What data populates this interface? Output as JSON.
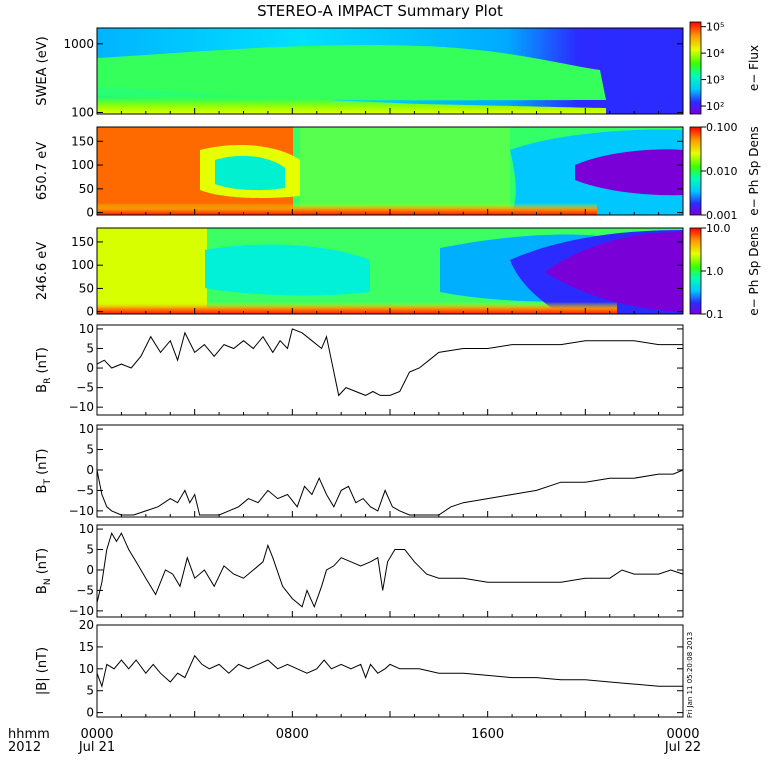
{
  "title": "STEREO-A IMPACT Summary Plot",
  "footer": {
    "left_top": "hhmm",
    "left_bottom": "2012"
  },
  "side_stamp": "Fri Jan 11 05:20:08 2013",
  "chart_data": [
    {
      "type": "heatmap",
      "id": "swea",
      "ylabel": "SWEA (eV)",
      "yscale": "log",
      "ylim": [
        95,
        1700
      ],
      "yticks": [
        {
          "v": 100,
          "label": "100"
        },
        {
          "v": 1000,
          "label": "1000"
        }
      ],
      "colorbar": {
        "label": "e− Flux",
        "scale": "log",
        "range": [
          50,
          150000
        ],
        "ticks": [
          {
            "v": 100,
            "label": "10²"
          },
          {
            "v": 1000,
            "label": "10³"
          },
          {
            "v": 10000,
            "label": "10⁴"
          },
          {
            "v": 100000,
            "label": "10⁵"
          }
        ]
      },
      "dimensions": {
        "time_hours": [
          0,
          24
        ],
        "energy_eV": [
          95,
          1700
        ]
      }
    },
    {
      "type": "heatmap",
      "id": "pad650",
      "ylabel": "650.7 eV",
      "ylim": [
        -5,
        180
      ],
      "yticks": [
        {
          "v": 0,
          "label": "0"
        },
        {
          "v": 50,
          "label": "50"
        },
        {
          "v": 100,
          "label": "100"
        },
        {
          "v": 150,
          "label": "150"
        }
      ],
      "colorbar": {
        "label": "e− Ph Sp Dens",
        "scale": "log",
        "range": [
          0.001,
          0.1
        ],
        "ticks": [
          {
            "v": 0.001,
            "label": "0.001"
          },
          {
            "v": 0.01,
            "label": "0.010"
          },
          {
            "v": 0.1,
            "label": "0.100"
          }
        ]
      }
    },
    {
      "type": "heatmap",
      "id": "pad246",
      "ylabel": "246.6 eV",
      "ylim": [
        -5,
        180
      ],
      "yticks": [
        {
          "v": 0,
          "label": "0"
        },
        {
          "v": 50,
          "label": "50"
        },
        {
          "v": 100,
          "label": "100"
        },
        {
          "v": 150,
          "label": "150"
        }
      ],
      "colorbar": {
        "label": "e− Ph Sp Dens",
        "scale": "log",
        "range": [
          0.1,
          10
        ],
        "ticks": [
          {
            "v": 0.1,
            "label": "0.1"
          },
          {
            "v": 1,
            "label": "1.0"
          },
          {
            "v": 10,
            "label": "10.0"
          }
        ]
      }
    },
    {
      "type": "line",
      "id": "br",
      "ylabel_main": "B",
      "ylabel_sub": "R",
      "ylabel_unit": " (nT)",
      "ylim": [
        -12,
        11
      ],
      "yticks": [
        {
          "v": -10,
          "label": "−10"
        },
        {
          "v": -5,
          "label": "−5"
        },
        {
          "v": 0,
          "label": "0"
        },
        {
          "v": 5,
          "label": "5"
        },
        {
          "v": 10,
          "label": "10"
        }
      ],
      "x": [
        0,
        0.3,
        0.6,
        1.0,
        1.4,
        1.8,
        2.2,
        2.6,
        3.0,
        3.3,
        3.6,
        4.0,
        4.4,
        4.8,
        5.2,
        5.6,
        6.0,
        6.4,
        6.8,
        7.2,
        7.5,
        7.8,
        8.0,
        8.4,
        8.8,
        9.2,
        9.4,
        9.6,
        9.9,
        10.2,
        10.6,
        11.0,
        11.3,
        11.6,
        12.0,
        12.4,
        12.8,
        13.2,
        13.6,
        14.0,
        15.0,
        16.0,
        17.0,
        18.0,
        19.0,
        20.0,
        21.0,
        22.0,
        23.0,
        24.0
      ],
      "values": [
        1,
        2,
        0,
        1,
        0,
        3,
        8,
        4,
        7,
        2,
        9,
        4,
        6,
        3,
        6,
        5,
        7,
        5,
        8,
        4,
        7,
        5,
        10,
        9,
        7,
        5,
        8,
        2,
        -7,
        -5,
        -6,
        -7,
        -6,
        -7,
        -7,
        -6,
        -1,
        0,
        2,
        4,
        5,
        5,
        6,
        6,
        6,
        7,
        7,
        7,
        6,
        6
      ]
    },
    {
      "type": "line",
      "id": "bt",
      "ylabel_main": "B",
      "ylabel_sub": "T",
      "ylabel_unit": " (nT)",
      "ylim": [
        -11.5,
        11
      ],
      "yticks": [
        {
          "v": -10,
          "label": "−10"
        },
        {
          "v": -5,
          "label": "−5"
        },
        {
          "v": 0,
          "label": "0"
        },
        {
          "v": 5,
          "label": "5"
        },
        {
          "v": 10,
          "label": "10"
        }
      ],
      "x": [
        0,
        0.1,
        0.2,
        0.4,
        0.6,
        1.0,
        1.5,
        2.0,
        2.5,
        3.0,
        3.3,
        3.6,
        3.8,
        4.0,
        4.2,
        4.4,
        4.6,
        5.0,
        5.4,
        5.8,
        6.2,
        6.6,
        7.0,
        7.4,
        7.8,
        8.2,
        8.5,
        8.8,
        9.1,
        9.4,
        9.7,
        10.0,
        10.3,
        10.6,
        10.9,
        11.2,
        11.5,
        11.8,
        12.1,
        12.4,
        12.8,
        13.2,
        13.6,
        14.0,
        14.5,
        15.0,
        16.0,
        17.0,
        18.0,
        19.0,
        20.0,
        21.0,
        22.0,
        23.0,
        23.6,
        24.0
      ],
      "values": [
        0,
        -3,
        -6,
        -9,
        -10,
        -11,
        -11,
        -10,
        -9,
        -7,
        -8,
        -5,
        -8,
        -6,
        -11,
        -11,
        -11,
        -11,
        -10,
        -9,
        -7,
        -8,
        -5,
        -7,
        -6,
        -9,
        -4,
        -6,
        -2,
        -6,
        -9,
        -5,
        -4,
        -8,
        -7,
        -9,
        -10,
        -5,
        -9,
        -10,
        -11,
        -11,
        -11,
        -11,
        -9,
        -8,
        -7,
        -6,
        -5,
        -3,
        -3,
        -2,
        -2,
        -1,
        -1,
        0
      ]
    },
    {
      "type": "line",
      "id": "bn",
      "ylabel_main": "B",
      "ylabel_sub": "N",
      "ylabel_unit": " (nT)",
      "ylim": [
        -11.5,
        11
      ],
      "yticks": [
        {
          "v": -10,
          "label": "−10"
        },
        {
          "v": -5,
          "label": "−5"
        },
        {
          "v": 0,
          "label": "0"
        },
        {
          "v": 5,
          "label": "5"
        },
        {
          "v": 10,
          "label": "10"
        }
      ],
      "x": [
        0,
        0.2,
        0.4,
        0.6,
        0.8,
        1.0,
        1.3,
        1.6,
        2.0,
        2.4,
        2.8,
        3.1,
        3.4,
        3.7,
        4.0,
        4.4,
        4.8,
        5.2,
        5.6,
        6.0,
        6.4,
        6.8,
        7.0,
        7.2,
        7.6,
        8.0,
        8.4,
        8.6,
        8.9,
        9.2,
        9.4,
        9.7,
        10.0,
        10.4,
        10.8,
        11.2,
        11.5,
        11.7,
        11.9,
        12.2,
        12.6,
        13.0,
        13.5,
        14.0,
        15.0,
        16.0,
        17.0,
        18.0,
        19.0,
        20.0,
        21.0,
        21.5,
        22.0,
        22.5,
        23.0,
        23.5,
        24.0
      ],
      "values": [
        -8,
        -3,
        5,
        9,
        7,
        9,
        5,
        2,
        -2,
        -6,
        0,
        -1,
        -4,
        3,
        -2,
        0,
        -4,
        1,
        -1,
        -2,
        0,
        2,
        6,
        3,
        -4,
        -7,
        -9,
        -5,
        -9,
        -4,
        0,
        1,
        3,
        2,
        1,
        2,
        3,
        -5,
        2,
        5,
        5,
        2,
        -1,
        -2,
        -2,
        -3,
        -3,
        -3,
        -3,
        -2,
        -2,
        0,
        -1,
        -1,
        -1,
        0,
        -1
      ]
    },
    {
      "type": "line",
      "id": "bmag",
      "ylabel_main": "|B|",
      "ylabel_sub": "",
      "ylabel_unit": " (nT)",
      "ylim": [
        -1,
        20
      ],
      "yticks": [
        {
          "v": 0,
          "label": "0"
        },
        {
          "v": 5,
          "label": "5"
        },
        {
          "v": 10,
          "label": "10"
        },
        {
          "v": 15,
          "label": "15"
        },
        {
          "v": 20,
          "label": "20"
        }
      ],
      "x": [
        0,
        0.2,
        0.4,
        0.7,
        1.0,
        1.3,
        1.6,
        2.0,
        2.3,
        2.6,
        3.0,
        3.3,
        3.6,
        4.0,
        4.3,
        4.6,
        5.0,
        5.4,
        5.8,
        6.2,
        6.6,
        7.0,
        7.4,
        7.8,
        8.2,
        8.6,
        9.0,
        9.3,
        9.6,
        10.0,
        10.4,
        10.8,
        11.0,
        11.2,
        11.5,
        11.8,
        12.0,
        12.4,
        12.8,
        13.2,
        14.0,
        15.0,
        16.0,
        17.0,
        18.0,
        19.0,
        20.0,
        21.0,
        22.0,
        23.0,
        24.0
      ],
      "values": [
        9,
        6,
        11,
        10,
        12,
        10,
        12,
        9,
        11,
        9,
        7,
        9,
        8,
        13,
        11,
        10,
        11,
        9,
        11,
        10,
        11,
        12,
        10,
        11,
        10,
        9,
        10,
        12,
        10,
        11,
        10,
        11,
        8,
        11,
        9,
        10,
        11,
        10,
        10,
        10,
        9,
        9,
        8.5,
        8,
        8,
        7.5,
        7.5,
        7,
        6.5,
        6,
        6
      ]
    }
  ],
  "xaxis": {
    "range_hours": [
      0,
      24
    ],
    "ticks": [
      {
        "v": 0,
        "time": "0000",
        "date": "Jul 21"
      },
      {
        "v": 8,
        "time": "0800",
        "date": ""
      },
      {
        "v": 16,
        "time": "1600",
        "date": ""
      },
      {
        "v": 24,
        "time": "0000",
        "date": "Jul 22"
      }
    ]
  }
}
